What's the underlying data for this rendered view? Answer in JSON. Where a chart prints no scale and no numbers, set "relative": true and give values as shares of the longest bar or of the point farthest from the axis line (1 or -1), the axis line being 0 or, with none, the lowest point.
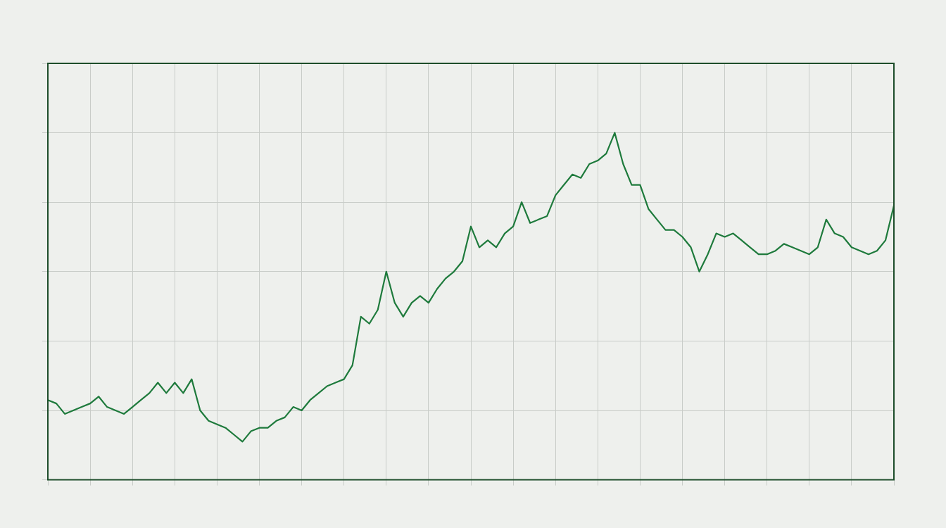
{
  "chart_data": {
    "type": "line",
    "relative": true,
    "grid": true,
    "legend": false,
    "marker": "none",
    "line_style": "solid",
    "categories": [
      null,
      null,
      null,
      null,
      null,
      null,
      null,
      null,
      null,
      null,
      null,
      null,
      null,
      null,
      null,
      null,
      null,
      null,
      null,
      null,
      null,
      null,
      null,
      null,
      null,
      null,
      null,
      null,
      null,
      null,
      null,
      null,
      null,
      null,
      null,
      null,
      null,
      null,
      null,
      null,
      null,
      null,
      null,
      null,
      null,
      null,
      null,
      null,
      null,
      null,
      null,
      null,
      null,
      null,
      null,
      null,
      null,
      null,
      null,
      null,
      null,
      null,
      null,
      null,
      null,
      null,
      null,
      null,
      null,
      null,
      null,
      null,
      null,
      null,
      null,
      null,
      null,
      null,
      null,
      null,
      null,
      null,
      null,
      null,
      null,
      null,
      null,
      null,
      null,
      null,
      null,
      null,
      null,
      null,
      null,
      null,
      null,
      null,
      null,
      null,
      null
    ],
    "series": [
      {
        "color": "#1e7a3c",
        "values": [
          0.23,
          0.22,
          0.19,
          0.2,
          0.21,
          0.22,
          0.24,
          0.21,
          0.2,
          0.19,
          0.21,
          0.23,
          0.25,
          0.28,
          0.25,
          0.28,
          0.25,
          0.29,
          0.2,
          0.17,
          0.16,
          0.15,
          0.13,
          0.11,
          0.14,
          0.15,
          0.15,
          0.17,
          0.18,
          0.21,
          0.2,
          0.23,
          0.25,
          0.27,
          0.28,
          0.29,
          0.33,
          0.47,
          0.45,
          0.49,
          0.6,
          0.51,
          0.47,
          0.51,
          0.53,
          0.51,
          0.55,
          0.58,
          0.6,
          0.63,
          0.73,
          0.67,
          0.69,
          0.67,
          0.71,
          0.73,
          0.8,
          0.74,
          0.75,
          0.76,
          0.82,
          0.85,
          0.88,
          0.87,
          0.91,
          0.92,
          0.94,
          1,
          0.91,
          0.85,
          0.85,
          0.78,
          0.75,
          0.72,
          0.72,
          0.7,
          0.67,
          0.6,
          0.65,
          0.71,
          0.7,
          0.71,
          0.69,
          0.67,
          0.65,
          0.65,
          0.66,
          0.68,
          0.67,
          0.66,
          0.65,
          0.67,
          0.75,
          0.71,
          0.7,
          0.67,
          0.66,
          0.65,
          0.66,
          0.69,
          0.79
        ]
      }
    ]
  }
}
